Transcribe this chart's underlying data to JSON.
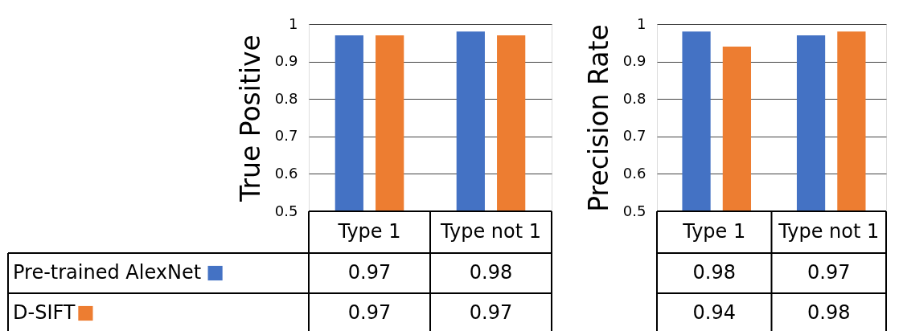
{
  "chart_data": [
    {
      "type": "bar",
      "ylabel": "True Positive",
      "categories": [
        "Type 1",
        "Type not 1"
      ],
      "series": [
        {
          "name": "Pre-trained AlexNet",
          "color": "#4472c4",
          "values": [
            0.97,
            0.98
          ]
        },
        {
          "name": "D-SIFT",
          "color": "#ed7d31",
          "values": [
            0.97,
            0.97
          ]
        }
      ],
      "ylim": [
        0.5,
        1
      ],
      "yticks": [
        0.5,
        0.6,
        0.7,
        0.8,
        0.9,
        1
      ],
      "grid": "y",
      "data_labels": true,
      "legend": "bottom left"
    },
    {
      "type": "bar",
      "ylabel": "Precision Rate",
      "categories": [
        "Type 1",
        "Type not 1"
      ],
      "series": [
        {
          "color": "#4472c4",
          "values": [
            0.98,
            0.97
          ]
        },
        {
          "color": "#ed7d31",
          "values": [
            0.94,
            0.98
          ]
        }
      ],
      "ylim": [
        0.5,
        1
      ],
      "yticks": [
        0.5,
        0.6,
        0.7,
        0.8,
        0.9,
        1
      ],
      "grid": "y",
      "data_labels": true
    }
  ]
}
